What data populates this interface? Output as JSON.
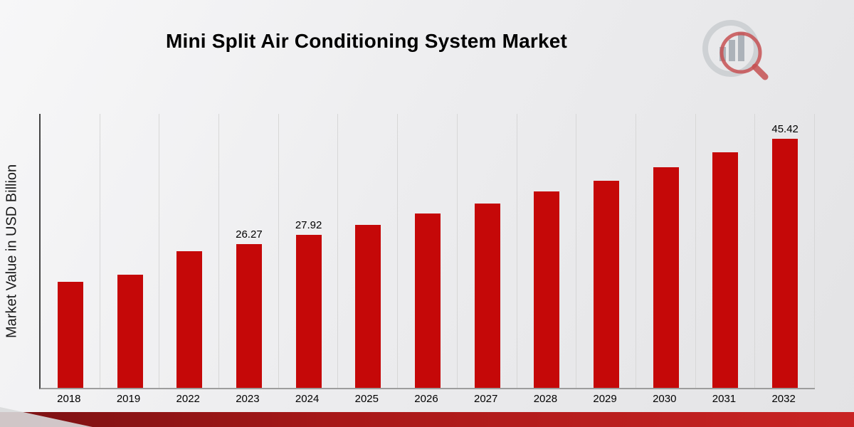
{
  "page": {
    "title": "Mini Split Air Conditioning System Market",
    "brand_logo": "magnifier-bar-chart-logo"
  },
  "colors": {
    "bar": "#c50808",
    "footer_left": "#7a1113",
    "footer_mid": "#a81818",
    "footer_right": "#c92424",
    "gridline": "#d7d7d7",
    "logo_gray": "#c9cdd1",
    "logo_red": "#c4494b"
  },
  "chart_data": {
    "type": "bar",
    "title": "Mini Split Air Conditioning System Market",
    "xlabel": "",
    "ylabel": "Market Value in USD Billion",
    "categories": [
      "2018",
      "2019",
      "2022",
      "2023",
      "2024",
      "2025",
      "2026",
      "2027",
      "2028",
      "2029",
      "2030",
      "2031",
      "2032"
    ],
    "values": [
      19.4,
      20.6,
      24.9,
      26.27,
      27.92,
      29.7,
      31.8,
      33.6,
      35.8,
      37.8,
      40.3,
      43.0,
      45.42
    ],
    "bar_labels": [
      "",
      "",
      "",
      "26.27",
      "27.92",
      "",
      "",
      "",
      "",
      "",
      "",
      "",
      "45.42"
    ],
    "ylim": [
      0,
      50
    ],
    "grid": "vertical",
    "legend": "none",
    "bar_color": "#c50808"
  }
}
